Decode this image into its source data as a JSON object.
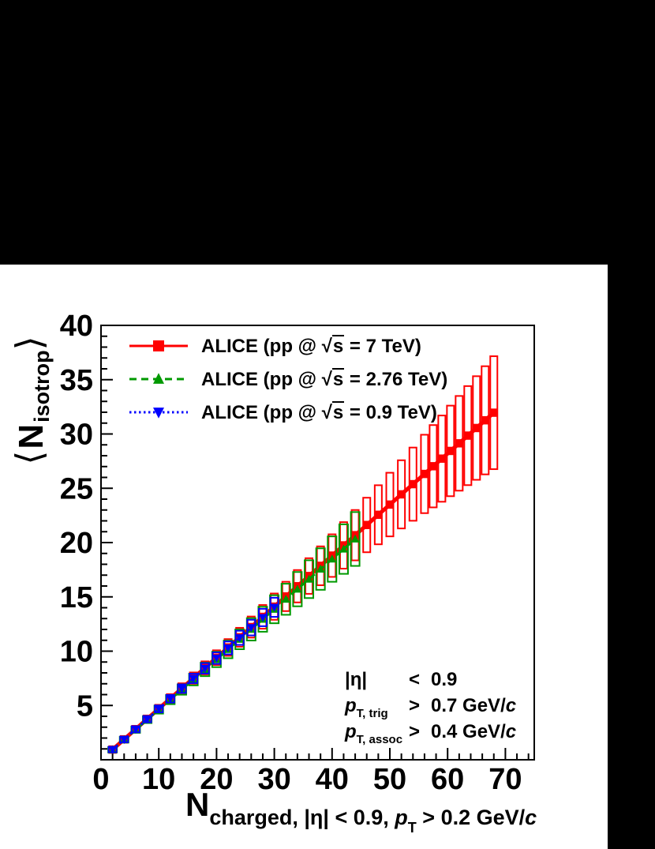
{
  "canvas": {
    "background_color": "#000000",
    "panel_color": "#ffffff",
    "frame_color": "#000000"
  },
  "chart_data": {
    "type": "scatter",
    "title": "",
    "xlabel": "N_charged, |η| < 0.9, p_T > 0.2 GeV/c",
    "ylabel": "⟨ N_isotrop ⟩",
    "xlabel_rich": [
      {
        "t": "N",
        "s": "xt-main"
      },
      {
        "t": "charged, |η| < 0.9, ",
        "s": "xt-sub"
      },
      {
        "t": "p",
        "s": "xt-sub-i"
      },
      {
        "t": "T",
        "s": "xt-subsub"
      },
      {
        "t": " > 0.2 GeV/",
        "s": "xt-sub"
      },
      {
        "t": "c",
        "s": "xt-sub-i"
      }
    ],
    "ylabel_rich": [
      {
        "t": "⟨ ",
        "s": "yt-br"
      },
      {
        "t": "N",
        "s": "yt-main"
      },
      {
        "t": "isotrop",
        "s": "yt-sub"
      },
      {
        "t": " ⟩",
        "s": "yt-br"
      }
    ],
    "xlim": [
      0,
      75
    ],
    "ylim": [
      0,
      40
    ],
    "x_major_ticks": [
      0,
      10,
      20,
      30,
      40,
      50,
      60,
      70
    ],
    "x_minor_step": 2,
    "y_major_ticks": [
      5,
      10,
      15,
      20,
      25,
      30,
      35,
      40
    ],
    "y_minor_step": 1,
    "grid": false,
    "legend_position": "top-left",
    "series": [
      {
        "name": "ALICE (pp @ √s = 7 TeV)",
        "legend": {
          "pre": "ALICE (pp @ ",
          "radical": "√",
          "arg": "s",
          "post": " = 7 TeV)"
        },
        "color": "#ff0000",
        "marker": "square",
        "line": "solid",
        "line_width": 5,
        "box_halfwidth": 4.5,
        "x": [
          2,
          4,
          6,
          8,
          10,
          12,
          14,
          16,
          18,
          20,
          22,
          24,
          26,
          28,
          30,
          32,
          34,
          36,
          38,
          40,
          42,
          44,
          46,
          48,
          50,
          52,
          54,
          56,
          57.5,
          59,
          60.5,
          62,
          63.5,
          65,
          66.5,
          68
        ],
        "y": [
          0.94,
          1.88,
          2.82,
          3.76,
          4.7,
          5.64,
          6.58,
          7.52,
          8.46,
          9.4,
          10.34,
          11.28,
          12.22,
          13.16,
          14.1,
          15.04,
          15.98,
          16.92,
          17.86,
          18.8,
          19.74,
          20.68,
          21.62,
          22.56,
          23.5,
          24.44,
          25.38,
          26.32,
          27.03,
          27.73,
          28.44,
          29.14,
          29.85,
          30.55,
          31.26,
          31.96
        ],
        "sys": [
          0.25,
          0.27,
          0.29,
          0.32,
          0.36,
          0.4,
          0.46,
          0.52,
          0.6,
          0.68,
          0.77,
          0.87,
          0.97,
          1.09,
          1.21,
          1.35,
          1.49,
          1.64,
          1.79,
          1.96,
          2.14,
          2.32,
          2.51,
          2.72,
          2.93,
          3.14,
          3.37,
          3.61,
          3.79,
          3.97,
          4.17,
          4.36,
          4.56,
          4.77,
          4.98,
          5.2
        ]
      },
      {
        "name": "ALICE (pp @ √s = 2.76 TeV)",
        "legend": {
          "pre": "ALICE (pp @ ",
          "radical": "√",
          "arg": "s",
          "post": " = 2.76 TeV)"
        },
        "color": "#009900",
        "marker": "triangle-up",
        "line": "dashed",
        "line_width": 3,
        "box_halfwidth": 5.5,
        "x": [
          2,
          4,
          6,
          8,
          10,
          12,
          14,
          16,
          18,
          20,
          22,
          24,
          26,
          28,
          30,
          32,
          34,
          36,
          38,
          40,
          42,
          44
        ],
        "y": [
          0.92,
          1.85,
          2.77,
          3.7,
          4.62,
          5.54,
          6.47,
          7.39,
          8.32,
          9.24,
          10.16,
          11.09,
          12.01,
          12.94,
          13.86,
          14.78,
          15.71,
          16.63,
          17.56,
          18.48,
          19.4,
          20.33
        ],
        "sys": [
          0.25,
          0.27,
          0.29,
          0.32,
          0.37,
          0.42,
          0.48,
          0.54,
          0.62,
          0.71,
          0.81,
          0.91,
          1.03,
          1.15,
          1.29,
          1.43,
          1.58,
          1.74,
          1.91,
          2.09,
          2.28,
          2.48
        ]
      },
      {
        "name": "ALICE (pp @ √s = 0.9 TeV)",
        "legend": {
          "pre": "ALICE (pp @ ",
          "radical": "√",
          "arg": "s",
          "post": " = 0.9 TeV)"
        },
        "color": "#0000ff",
        "marker": "triangle-down",
        "line": "dotted",
        "line_width": 3,
        "box_halfwidth": 5,
        "x": [
          2,
          4,
          6,
          8,
          10,
          12,
          14,
          16,
          18,
          20,
          22,
          24,
          26,
          28,
          30
        ],
        "y": [
          0.94,
          1.87,
          2.81,
          3.74,
          4.68,
          5.62,
          6.55,
          7.49,
          8.42,
          9.36,
          10.3,
          11.23,
          12.17,
          13.1,
          14.04
        ],
        "sys": [
          0.25,
          0.26,
          0.28,
          0.29,
          0.32,
          0.35,
          0.39,
          0.43,
          0.48,
          0.53,
          0.59,
          0.65,
          0.72,
          0.8,
          0.88
        ]
      }
    ],
    "cuts": [
      {
        "sym": "|η|",
        "italic": false,
        "sub": "",
        "op": "<",
        "val": "0.9",
        "unit": "",
        "unit_c": "",
        "text": "|η| < 0.9"
      },
      {
        "sym": "p",
        "italic": true,
        "sub": "T, trig",
        "op": ">",
        "val": "0.7",
        "unit": " GeV/",
        "unit_c": "c",
        "text": "p_T,trig > 0.7 GeV/c"
      },
      {
        "sym": "p",
        "italic": true,
        "sub": "T, assoc",
        "op": ">",
        "val": "0.4",
        "unit": " GeV/",
        "unit_c": "c",
        "text": "p_T,assoc > 0.4 GeV/c"
      }
    ]
  }
}
